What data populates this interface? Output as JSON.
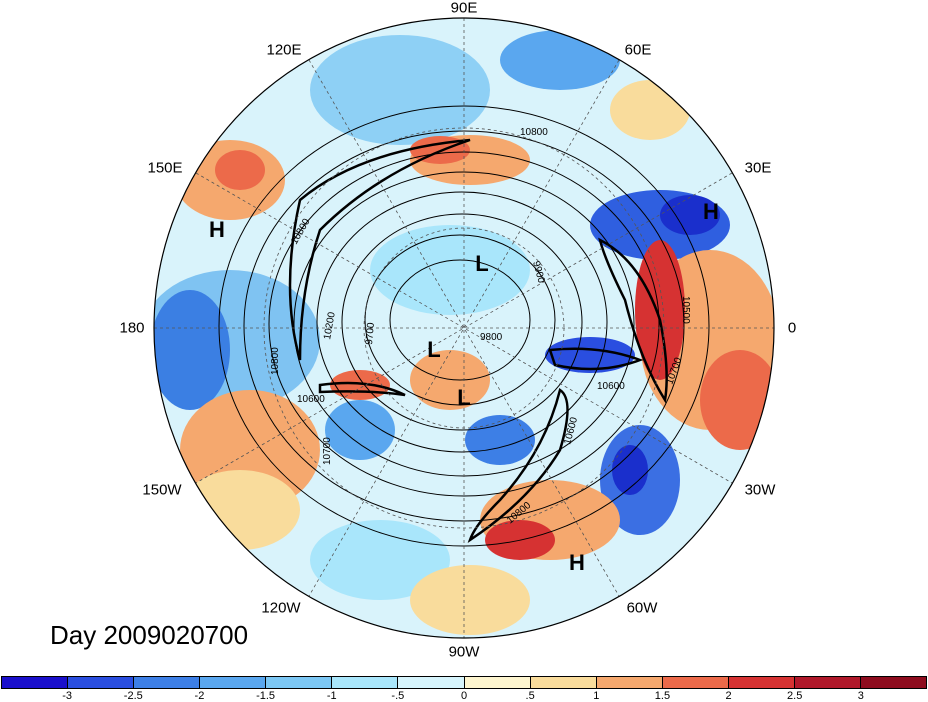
{
  "title": "Day 2009020700",
  "longitude_labels": [
    "90E",
    "60E",
    "30E",
    "0",
    "30W",
    "60W",
    "90W",
    "120W",
    "150W",
    "180",
    "150E",
    "120E"
  ],
  "pressure_centers": [
    "L",
    "L",
    "L",
    "H",
    "H",
    "H"
  ],
  "contour_labels": [
    "10800",
    "9900",
    "9800",
    "10600",
    "10500",
    "10700",
    "10600",
    "10700",
    "10800",
    "10200",
    "9700",
    "10800",
    "10600",
    "10800"
  ],
  "colorbar": {
    "ticks": [
      "-3",
      "-2.5",
      "-2",
      "-1.5",
      "-1",
      "-.5",
      "0",
      ".5",
      "1",
      "1.5",
      "2",
      "2.5",
      "3"
    ],
    "colors": [
      "#1a0fcc",
      "#2a4ee0",
      "#3d7fe6",
      "#5aa7ef",
      "#7cc7f4",
      "#a9e6fb",
      "#d6f4fc",
      "#fdf5cf",
      "#f9dc9c",
      "#f5a86e",
      "#ec6a4a",
      "#d63232",
      "#b0182a",
      "#8e0c1e"
    ]
  }
}
